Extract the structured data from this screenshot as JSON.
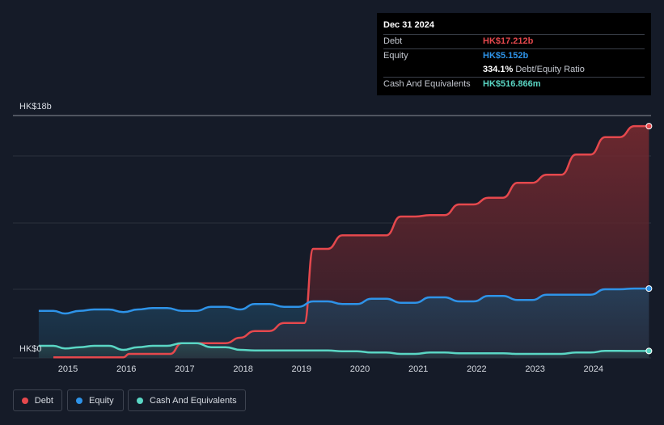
{
  "tooltip": {
    "date": "Dec 31 2024",
    "debt_label": "Debt",
    "debt_value": "HK$17.212b",
    "equity_label": "Equity",
    "equity_value": "HK$5.152b",
    "ratio_value": "334.1%",
    "ratio_label": "Debt/Equity Ratio",
    "cash_label": "Cash And Equivalents",
    "cash_value": "HK$516.866m"
  },
  "legend": [
    {
      "label": "Debt",
      "color": "#e5484d"
    },
    {
      "label": "Equity",
      "color": "#2e93e8"
    },
    {
      "label": "Cash And Equivalents",
      "color": "#5ad6c4"
    }
  ],
  "chart_data": {
    "type": "area",
    "ylim": [
      0,
      18
    ],
    "y_unit": "HK$ billions",
    "y_tick_labels": [
      "HK$0",
      "HK$18b"
    ],
    "x_ticks": [
      2015,
      2016,
      2017,
      2018,
      2019,
      2020,
      2021,
      2022,
      2023,
      2024
    ],
    "grid": true,
    "legend_position": "bottom-left",
    "colors": {
      "debt": "#e5484d",
      "equity": "#2e93e8",
      "cash": "#5ad6c4"
    },
    "series": [
      {
        "name": "Debt",
        "color": "#e5484d",
        "x": [
          2014.75,
          2014.95,
          2015.2,
          2015.45,
          2015.7,
          2015.95,
          2016.05,
          2016.3,
          2016.55,
          2016.75,
          2016.95,
          2017.2,
          2017.45,
          2017.7,
          2017.95,
          2018.2,
          2018.45,
          2018.7,
          2018.95,
          2019.05,
          2019.2,
          2019.45,
          2019.7,
          2019.95,
          2020.2,
          2020.45,
          2020.7,
          2020.95,
          2021.2,
          2021.45,
          2021.7,
          2021.95,
          2022.2,
          2022.45,
          2022.7,
          2022.95,
          2023.2,
          2023.45,
          2023.7,
          2023.95,
          2024.2,
          2024.45,
          2024.7,
          2024.95
        ],
        "values": [
          0.05,
          0.05,
          0.05,
          0.05,
          0.05,
          0.05,
          0.3,
          0.3,
          0.3,
          0.3,
          1.1,
          1.1,
          1.1,
          1.1,
          1.5,
          2.0,
          2.0,
          2.6,
          2.6,
          2.6,
          8.1,
          8.1,
          9.1,
          9.1,
          9.1,
          9.1,
          10.5,
          10.5,
          10.6,
          10.6,
          11.4,
          11.4,
          11.9,
          11.9,
          13.0,
          13.0,
          13.6,
          13.6,
          15.1,
          15.1,
          16.4,
          16.4,
          17.212,
          17.212
        ]
      },
      {
        "name": "Equity",
        "color": "#2e93e8",
        "x": [
          2014.5,
          2014.75,
          2014.95,
          2015.2,
          2015.45,
          2015.7,
          2015.95,
          2016.2,
          2016.45,
          2016.7,
          2016.95,
          2017.2,
          2017.45,
          2017.7,
          2017.95,
          2018.2,
          2018.45,
          2018.7,
          2018.95,
          2019.2,
          2019.45,
          2019.7,
          2019.95,
          2020.2,
          2020.45,
          2020.7,
          2020.95,
          2021.2,
          2021.45,
          2021.7,
          2021.95,
          2022.2,
          2022.45,
          2022.7,
          2022.95,
          2023.2,
          2023.45,
          2023.7,
          2023.95,
          2024.2,
          2024.45,
          2024.7,
          2024.95
        ],
        "values": [
          3.5,
          3.5,
          3.3,
          3.5,
          3.6,
          3.6,
          3.4,
          3.6,
          3.7,
          3.7,
          3.5,
          3.5,
          3.8,
          3.8,
          3.6,
          4.0,
          4.0,
          3.8,
          3.8,
          4.2,
          4.2,
          4.0,
          4.0,
          4.4,
          4.4,
          4.1,
          4.1,
          4.5,
          4.5,
          4.2,
          4.2,
          4.6,
          4.6,
          4.3,
          4.3,
          4.7,
          4.7,
          4.7,
          4.7,
          5.1,
          5.1,
          5.152,
          5.152
        ]
      },
      {
        "name": "Cash And Equivalents",
        "color": "#5ad6c4",
        "x": [
          2014.5,
          2014.75,
          2014.95,
          2015.2,
          2015.45,
          2015.7,
          2015.95,
          2016.2,
          2016.45,
          2016.7,
          2016.95,
          2017.2,
          2017.45,
          2017.7,
          2017.95,
          2018.2,
          2018.45,
          2018.7,
          2018.95,
          2019.2,
          2019.45,
          2019.7,
          2019.95,
          2020.2,
          2020.45,
          2020.7,
          2020.95,
          2021.2,
          2021.45,
          2021.7,
          2021.95,
          2022.2,
          2022.45,
          2022.7,
          2022.95,
          2023.2,
          2023.45,
          2023.7,
          2023.95,
          2024.2,
          2024.45,
          2024.7,
          2024.95
        ],
        "values": [
          0.9,
          0.9,
          0.7,
          0.8,
          0.9,
          0.9,
          0.6,
          0.8,
          0.9,
          0.9,
          1.1,
          1.1,
          0.8,
          0.8,
          0.6,
          0.55,
          0.55,
          0.55,
          0.55,
          0.55,
          0.55,
          0.5,
          0.5,
          0.4,
          0.4,
          0.3,
          0.3,
          0.4,
          0.4,
          0.35,
          0.35,
          0.35,
          0.35,
          0.3,
          0.3,
          0.3,
          0.3,
          0.4,
          0.4,
          0.52,
          0.52,
          0.517,
          0.517
        ]
      }
    ]
  }
}
